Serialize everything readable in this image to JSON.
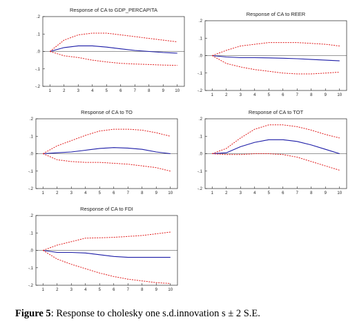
{
  "caption": {
    "label": "Figure 5",
    "text": ": Response to cholesky one s.d.innovation s ± 2 S.E."
  },
  "colors": {
    "response": "#1a1aa6",
    "band": "#e01818",
    "axis": "#222222"
  },
  "chart_data": [
    {
      "type": "line",
      "title": "Response of CA to GDP_PERCAPITA",
      "x": [
        1,
        2,
        3,
        4,
        5,
        6,
        7,
        8,
        9,
        10
      ],
      "ylim": [
        -0.2,
        0.2
      ],
      "yticks": [
        ".2",
        ".1",
        ".0",
        "-.1",
        "-.2"
      ],
      "series": [
        {
          "role": "response",
          "values": [
            0.0,
            0.022,
            0.032,
            0.032,
            0.025,
            0.015,
            0.006,
            0.0,
            -0.006,
            -0.01
          ]
        },
        {
          "role": "upper",
          "values": [
            0.0,
            0.065,
            0.095,
            0.105,
            0.105,
            0.095,
            0.085,
            0.075,
            0.065,
            0.055
          ]
        },
        {
          "role": "lower",
          "values": [
            0.0,
            -0.025,
            -0.035,
            -0.05,
            -0.06,
            -0.068,
            -0.072,
            -0.075,
            -0.078,
            -0.08
          ]
        }
      ]
    },
    {
      "type": "line",
      "title": "Response of CA to REER",
      "x": [
        1,
        2,
        3,
        4,
        5,
        6,
        7,
        8,
        9,
        10
      ],
      "ylim": [
        -0.2,
        0.2
      ],
      "yticks": [
        ".2",
        ".1",
        ".0",
        "-.1",
        "-.2"
      ],
      "series": [
        {
          "role": "response",
          "values": [
            0.0,
            -0.008,
            -0.012,
            -0.012,
            -0.013,
            -0.015,
            -0.018,
            -0.022,
            -0.026,
            -0.03
          ]
        },
        {
          "role": "upper",
          "values": [
            0.0,
            0.03,
            0.055,
            0.065,
            0.075,
            0.075,
            0.075,
            0.07,
            0.065,
            0.055
          ]
        },
        {
          "role": "lower",
          "values": [
            0.0,
            -0.045,
            -0.065,
            -0.08,
            -0.09,
            -0.1,
            -0.105,
            -0.105,
            -0.1,
            -0.095
          ]
        }
      ]
    },
    {
      "type": "line",
      "title": "Response of CA to TO",
      "x": [
        1,
        2,
        3,
        4,
        5,
        6,
        7,
        8,
        9,
        10
      ],
      "ylim": [
        -0.2,
        0.2
      ],
      "yticks": [
        ".2",
        ".1",
        ".0",
        "-.1",
        "-.2"
      ],
      "series": [
        {
          "role": "response",
          "values": [
            0.0,
            0.005,
            0.01,
            0.02,
            0.03,
            0.035,
            0.032,
            0.025,
            0.01,
            0.0
          ]
        },
        {
          "role": "upper",
          "values": [
            0.0,
            0.045,
            0.075,
            0.105,
            0.13,
            0.14,
            0.14,
            0.135,
            0.12,
            0.1
          ]
        },
        {
          "role": "lower",
          "values": [
            0.0,
            -0.035,
            -0.045,
            -0.05,
            -0.05,
            -0.055,
            -0.06,
            -0.07,
            -0.08,
            -0.1
          ]
        }
      ]
    },
    {
      "type": "line",
      "title": "Response of CA to TOT",
      "x": [
        1,
        2,
        3,
        4,
        5,
        6,
        7,
        8,
        9,
        10
      ],
      "ylim": [
        -0.2,
        0.2
      ],
      "yticks": [
        ".2",
        ".1",
        ".0",
        "-.1",
        "-.2"
      ],
      "series": [
        {
          "role": "response",
          "values": [
            0.0,
            0.005,
            0.04,
            0.065,
            0.08,
            0.08,
            0.07,
            0.05,
            0.025,
            0.0
          ]
        },
        {
          "role": "upper",
          "values": [
            0.0,
            0.03,
            0.09,
            0.14,
            0.165,
            0.165,
            0.155,
            0.135,
            0.11,
            0.09
          ]
        },
        {
          "role": "lower",
          "values": [
            0.0,
            -0.005,
            -0.005,
            0.0,
            0.0,
            -0.005,
            -0.02,
            -0.045,
            -0.07,
            -0.095
          ]
        }
      ]
    },
    {
      "type": "line",
      "title": "Response of CA to FDI",
      "x": [
        1,
        2,
        3,
        4,
        5,
        6,
        7,
        8,
        9,
        10
      ],
      "ylim": [
        -0.2,
        0.2
      ],
      "yticks": [
        ".2",
        ".1",
        ".0",
        "-.1",
        "-.2"
      ],
      "series": [
        {
          "role": "response",
          "values": [
            0.0,
            -0.012,
            -0.012,
            -0.015,
            -0.025,
            -0.035,
            -0.04,
            -0.04,
            -0.04,
            -0.04
          ]
        },
        {
          "role": "upper",
          "values": [
            0.0,
            0.03,
            0.05,
            0.07,
            0.072,
            0.075,
            0.08,
            0.085,
            0.095,
            0.105
          ]
        },
        {
          "role": "lower",
          "values": [
            0.0,
            -0.05,
            -0.08,
            -0.105,
            -0.13,
            -0.15,
            -0.165,
            -0.175,
            -0.185,
            -0.19
          ]
        }
      ]
    }
  ]
}
